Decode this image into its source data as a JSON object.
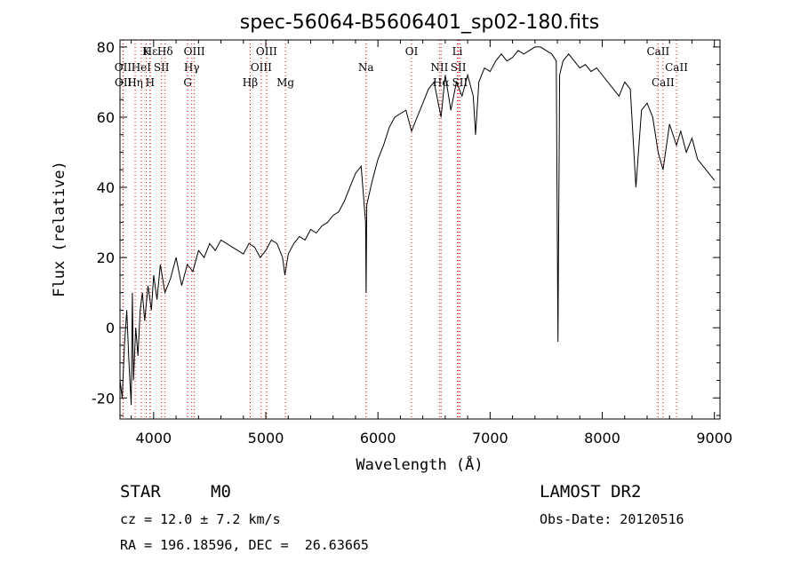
{
  "chart_data": {
    "type": "line",
    "title": "spec-56064-B5606401_sp02-180.fits",
    "xlabel": "Wavelength (Å)",
    "ylabel": "Flux (relative)",
    "xlim": [
      3700,
      9050
    ],
    "ylim": [
      -26,
      82
    ],
    "xticks": [
      4000,
      5000,
      6000,
      7000,
      8000,
      9000
    ],
    "yticks": [
      -20,
      0,
      20,
      40,
      60,
      80
    ],
    "series": [
      {
        "values_note_free": true,
        "x": [
          3700,
          3720,
          3740,
          3760,
          3780,
          3800,
          3810,
          3820,
          3840,
          3860,
          3880,
          3900,
          3920,
          3950,
          3980,
          4000,
          4030,
          4060,
          4100,
          4150,
          4200,
          4250,
          4300,
          4350,
          4400,
          4450,
          4500,
          4550,
          4600,
          4650,
          4700,
          4750,
          4800,
          4850,
          4900,
          4950,
          5000,
          5050,
          5100,
          5150,
          5170,
          5200,
          5250,
          5300,
          5350,
          5400,
          5450,
          5500,
          5550,
          5600,
          5650,
          5700,
          5750,
          5800,
          5850,
          5890,
          5895,
          5900,
          5950,
          6000,
          6050,
          6100,
          6150,
          6200,
          6250,
          6300,
          6350,
          6400,
          6450,
          6500,
          6563,
          6600,
          6650,
          6700,
          6750,
          6800,
          6850,
          6870,
          6900,
          6950,
          7000,
          7050,
          7100,
          7150,
          7200,
          7250,
          7300,
          7350,
          7400,
          7450,
          7500,
          7550,
          7590,
          7605,
          7620,
          7650,
          7700,
          7750,
          7800,
          7850,
          7900,
          7950,
          8000,
          8050,
          8100,
          8150,
          8200,
          8250,
          8300,
          8350,
          8400,
          8450,
          8498,
          8542,
          8600,
          8662,
          8700,
          8750,
          8800,
          8850,
          8900,
          8950,
          9000
        ],
        "y": [
          -15,
          -20,
          -5,
          5,
          -10,
          -22,
          10,
          -15,
          0,
          -8,
          5,
          10,
          2,
          12,
          5,
          15,
          8,
          18,
          10,
          14,
          20,
          12,
          18,
          16,
          22,
          20,
          24,
          22,
          25,
          24,
          23,
          22,
          21,
          24,
          23,
          20,
          22,
          25,
          24,
          20,
          15,
          21,
          24,
          26,
          25,
          28,
          27,
          29,
          30,
          32,
          33,
          36,
          40,
          44,
          46,
          30,
          10,
          35,
          42,
          48,
          52,
          57,
          60,
          61,
          62,
          56,
          60,
          64,
          68,
          70,
          60,
          72,
          62,
          70,
          66,
          72,
          66,
          55,
          70,
          74,
          73,
          76,
          78,
          76,
          77,
          79,
          78,
          79,
          80,
          80,
          79,
          78,
          76,
          -4,
          72,
          76,
          78,
          76,
          74,
          75,
          73,
          74,
          72,
          70,
          68,
          66,
          70,
          68,
          40,
          62,
          64,
          60,
          50,
          45,
          58,
          52,
          56,
          50,
          54,
          48,
          46,
          44,
          42
        ]
      }
    ],
    "line_markers": [
      {
        "label": "Hε",
        "w": 3970,
        "row": 0
      },
      {
        "label": "K",
        "w": 3934,
        "row": 0
      },
      {
        "label": "Hδ",
        "w": 4102,
        "row": 0
      },
      {
        "label": "OIII",
        "w": 4363,
        "row": 0
      },
      {
        "label": "OIII",
        "w": 5007,
        "row": 0
      },
      {
        "label": "OI",
        "w": 6300,
        "row": 0
      },
      {
        "label": "Li",
        "w": 6708,
        "row": 0
      },
      {
        "label": "CaII",
        "w": 8498,
        "row": 0
      },
      {
        "label": "OII",
        "w": 3727,
        "row": 1
      },
      {
        "label": "HeI",
        "w": 3889,
        "row": 1
      },
      {
        "label": "SII",
        "w": 4070,
        "row": 1
      },
      {
        "label": "Hγ",
        "w": 4340,
        "row": 1
      },
      {
        "label": "OIII",
        "w": 4959,
        "row": 1
      },
      {
        "label": "Na",
        "w": 5893,
        "row": 1
      },
      {
        "label": "NII",
        "w": 6548,
        "row": 1
      },
      {
        "label": "SII",
        "w": 6717,
        "row": 1
      },
      {
        "label": "CaII",
        "w": 8662,
        "row": 1
      },
      {
        "label": "OII",
        "w": 3729,
        "row": 2
      },
      {
        "label": "Hη",
        "w": 3835,
        "row": 2
      },
      {
        "label": "H",
        "w": 3968,
        "row": 2
      },
      {
        "label": "G",
        "w": 4304,
        "row": 2
      },
      {
        "label": "Hβ",
        "w": 4861,
        "row": 2
      },
      {
        "label": "Mg",
        "w": 5175,
        "row": 2
      },
      {
        "label": "Hα",
        "w": 6563,
        "row": 2
      },
      {
        "label": "SII",
        "w": 6731,
        "row": 2
      },
      {
        "label": "CaII",
        "w": 8542,
        "row": 2
      }
    ],
    "colors": {
      "line": "#000000",
      "marker": "#ff0000"
    }
  },
  "info": {
    "class_label": "STAR",
    "subclass": "M0",
    "survey": "LAMOST DR2",
    "cz": "cz = 12.0 ± 7.2 km/s",
    "obs_date": "Obs-Date: 20120516",
    "coords": "RA = 196.18596, DEC =  26.63665"
  }
}
